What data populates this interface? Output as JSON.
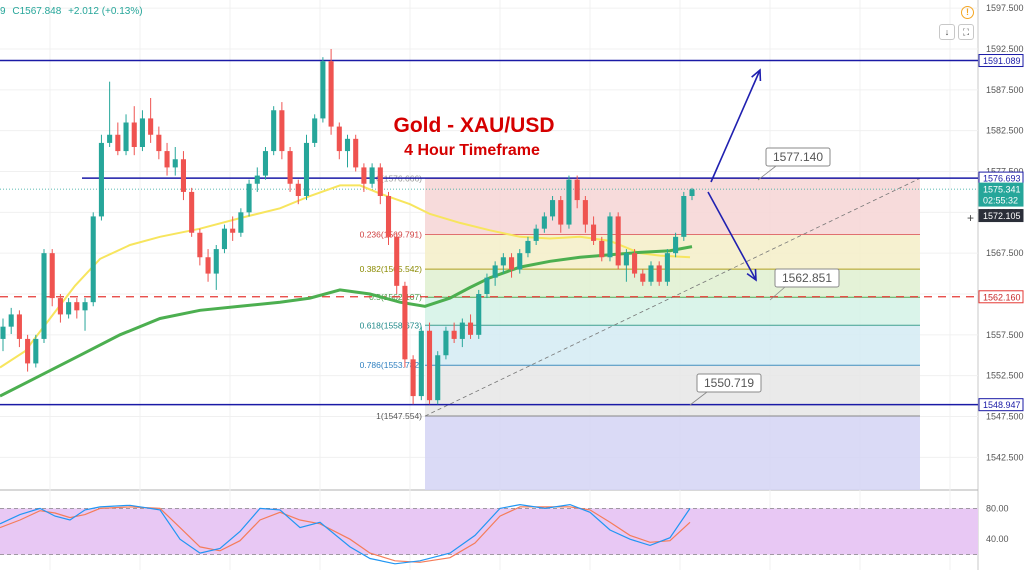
{
  "header": {
    "prefix": "9",
    "close": "C1567.848",
    "change": "+2.012 (+0.13%)"
  },
  "title": {
    "line1": "Gold - XAU/USD",
    "line2": "4 Hour Timeframe"
  },
  "colors": {
    "bull": "#26a69a",
    "bear": "#ef5350",
    "hline": "#1a1aa6",
    "redline": "#e53935",
    "ma_fast": "#f7e55e",
    "ma_slow": "#4caf50",
    "title": "#d50000",
    "stoch_bg": "#e8c8f4"
  },
  "toolbar": {
    "warn_icon": "!",
    "down_icon": "↓",
    "fullscreen_icon": "⛶"
  },
  "chart_data": {
    "type": "candlestick",
    "ylim": [
      1538.5,
      1598.5
    ],
    "y_ticks": [
      "1597.500",
      "1592.500",
      "1587.500",
      "1582.500",
      "1577.500",
      "1572.500",
      "1567.500",
      "1562.500",
      "1557.500",
      "1552.500",
      "1547.500",
      "1542.500"
    ],
    "price_labels": [
      {
        "value": 1591.089,
        "text": "1591.089",
        "style": "hline"
      },
      {
        "value": 1576.693,
        "text": "1576.693",
        "style": "hline"
      },
      {
        "value": 1575.341,
        "text": "1575.341",
        "style": "bull"
      },
      {
        "value": 1574.0,
        "text": "02:55:32",
        "style": "bull"
      },
      {
        "value": 1572.105,
        "text": "1572.105",
        "style": "dark"
      },
      {
        "value": 1562.16,
        "text": "1562.160",
        "style": "red"
      },
      {
        "value": 1548.947,
        "text": "1548.947",
        "style": "hline"
      }
    ],
    "horizontal_lines": [
      {
        "value": 1591.089,
        "style": "solid"
      },
      {
        "value": 1576.693,
        "style": "solid"
      },
      {
        "value": 1548.947,
        "style": "solid"
      },
      {
        "value": 1562.16,
        "style": "dashed"
      }
    ],
    "fibonacci": {
      "levels": [
        {
          "ratio": 0,
          "price": 1576.666,
          "label": "0(1576.666)"
        },
        {
          "ratio": 0.236,
          "price": 1569.791,
          "label": "0.236(1569.791)"
        },
        {
          "ratio": 0.382,
          "price": 1565.542,
          "label": "0.382(1565.542)"
        },
        {
          "ratio": 0.5,
          "price": 1562.107,
          "label": "0.5(1562.107)"
        },
        {
          "ratio": 0.618,
          "price": 1558.673,
          "label": "0.618(1558.673)"
        },
        {
          "ratio": 0.786,
          "price": 1553.782,
          "label": "0.786(1553.782)"
        },
        {
          "ratio": 1,
          "price": 1547.554,
          "label": "1(1547.554)"
        }
      ],
      "zone_colors": [
        "#f6d5d5",
        "#f5efc8",
        "#dff0d0",
        "#d3f2e6",
        "#d4ebf3",
        "#e6e6e6",
        "#d4d4f4"
      ]
    },
    "callouts": [
      {
        "text": "1577.140",
        "price": 1577.14
      },
      {
        "text": "1562.851",
        "price": 1562.851
      },
      {
        "text": "1550.719",
        "price": 1550.719
      }
    ],
    "candles": [
      [
        1557.0,
        1559.5,
        1555.5,
        1558.5
      ],
      [
        1558.5,
        1560.8,
        1557.6,
        1560.0
      ],
      [
        1560.0,
        1560.5,
        1556.0,
        1557.0
      ],
      [
        1557.0,
        1557.5,
        1553.0,
        1554.0
      ],
      [
        1554.0,
        1557.5,
        1553.5,
        1557.0
      ],
      [
        1557.0,
        1568.0,
        1556.5,
        1567.5
      ],
      [
        1567.5,
        1568.0,
        1561.0,
        1562.0
      ],
      [
        1562.0,
        1562.5,
        1559.0,
        1560.0
      ],
      [
        1560.0,
        1562.0,
        1559.5,
        1561.5
      ],
      [
        1561.5,
        1562.0,
        1559.5,
        1560.5
      ],
      [
        1560.5,
        1562.0,
        1558.0,
        1561.5
      ],
      [
        1561.5,
        1572.5,
        1561.0,
        1572.0
      ],
      [
        1572.0,
        1582.0,
        1571.5,
        1581.0
      ],
      [
        1581.0,
        1588.5,
        1580.5,
        1582.0
      ],
      [
        1582.0,
        1583.5,
        1579.5,
        1580.0
      ],
      [
        1580.0,
        1584.5,
        1579.5,
        1583.5
      ],
      [
        1583.5,
        1585.5,
        1579.5,
        1580.5
      ],
      [
        1580.5,
        1585.0,
        1580.0,
        1584.0
      ],
      [
        1584.0,
        1586.5,
        1581.0,
        1582.0
      ],
      [
        1582.0,
        1583.0,
        1579.0,
        1580.0
      ],
      [
        1580.0,
        1581.0,
        1577.0,
        1578.0
      ],
      [
        1578.0,
        1580.5,
        1577.0,
        1579.0
      ],
      [
        1579.0,
        1580.0,
        1574.0,
        1575.0
      ],
      [
        1575.0,
        1575.5,
        1569.5,
        1570.0
      ],
      [
        1570.0,
        1570.5,
        1566.0,
        1567.0
      ],
      [
        1567.0,
        1568.0,
        1564.0,
        1565.0
      ],
      [
        1565.0,
        1568.5,
        1563.0,
        1568.0
      ],
      [
        1568.0,
        1571.0,
        1567.5,
        1570.5
      ],
      [
        1570.5,
        1572.0,
        1569.0,
        1570.0
      ],
      [
        1570.0,
        1573.0,
        1569.5,
        1572.5
      ],
      [
        1572.5,
        1576.5,
        1572.0,
        1576.0
      ],
      [
        1576.0,
        1578.0,
        1575.0,
        1577.0
      ],
      [
        1577.0,
        1580.5,
        1576.5,
        1580.0
      ],
      [
        1580.0,
        1585.5,
        1579.5,
        1585.0
      ],
      [
        1585.0,
        1586.0,
        1579.0,
        1580.0
      ],
      [
        1580.0,
        1580.5,
        1575.0,
        1576.0
      ],
      [
        1576.0,
        1576.5,
        1573.5,
        1574.5
      ],
      [
        1574.5,
        1582.0,
        1574.0,
        1581.0
      ],
      [
        1581.0,
        1584.5,
        1580.5,
        1584.0
      ],
      [
        1584.0,
        1591.5,
        1583.5,
        1591.0
      ],
      [
        1591.0,
        1592.5,
        1582.0,
        1583.0
      ],
      [
        1583.0,
        1583.5,
        1579.0,
        1580.0
      ],
      [
        1580.0,
        1582.0,
        1578.0,
        1581.5
      ],
      [
        1581.5,
        1582.0,
        1577.5,
        1578.0
      ],
      [
        1578.0,
        1578.5,
        1575.0,
        1576.0
      ],
      [
        1576.0,
        1578.5,
        1575.5,
        1578.0
      ],
      [
        1578.0,
        1578.5,
        1573.5,
        1574.5
      ],
      [
        1574.5,
        1575.0,
        1568.5,
        1569.5
      ],
      [
        1569.5,
        1570.0,
        1562.5,
        1563.5
      ],
      [
        1563.5,
        1564.0,
        1553.5,
        1554.5
      ],
      [
        1554.5,
        1555.0,
        1549.0,
        1550.0
      ],
      [
        1550.0,
        1558.5,
        1549.5,
        1558.0
      ],
      [
        1558.0,
        1559.0,
        1549.0,
        1549.5
      ],
      [
        1549.5,
        1555.5,
        1549.0,
        1555.0
      ],
      [
        1555.0,
        1558.5,
        1554.5,
        1558.0
      ],
      [
        1558.0,
        1559.0,
        1556.5,
        1557.0
      ],
      [
        1557.0,
        1559.5,
        1556.0,
        1559.0
      ],
      [
        1559.0,
        1560.0,
        1557.0,
        1557.5
      ],
      [
        1557.5,
        1563.0,
        1557.0,
        1562.5
      ],
      [
        1562.5,
        1565.0,
        1562.0,
        1564.5
      ],
      [
        1564.5,
        1566.5,
        1563.5,
        1566.0
      ],
      [
        1566.0,
        1567.5,
        1565.0,
        1567.0
      ],
      [
        1567.0,
        1567.5,
        1564.5,
        1565.5
      ],
      [
        1565.5,
        1568.0,
        1565.0,
        1567.5
      ],
      [
        1567.5,
        1569.5,
        1567.0,
        1569.0
      ],
      [
        1569.0,
        1571.0,
        1568.5,
        1570.5
      ],
      [
        1570.5,
        1572.5,
        1570.0,
        1572.0
      ],
      [
        1572.0,
        1574.5,
        1571.5,
        1574.0
      ],
      [
        1574.0,
        1574.5,
        1570.0,
        1571.0
      ],
      [
        1571.0,
        1577.0,
        1570.5,
        1576.5
      ],
      [
        1576.5,
        1577.0,
        1573.0,
        1574.0
      ],
      [
        1574.0,
        1574.5,
        1570.0,
        1571.0
      ],
      [
        1571.0,
        1572.0,
        1568.5,
        1569.0
      ],
      [
        1569.0,
        1569.5,
        1566.5,
        1567.0
      ],
      [
        1567.0,
        1572.5,
        1566.5,
        1572.0
      ],
      [
        1572.0,
        1572.5,
        1565.5,
        1566.0
      ],
      [
        1566.0,
        1568.0,
        1564.0,
        1567.5
      ],
      [
        1567.5,
        1568.0,
        1564.5,
        1565.0
      ],
      [
        1565.0,
        1565.5,
        1563.5,
        1564.0
      ],
      [
        1564.0,
        1566.5,
        1563.5,
        1566.0
      ],
      [
        1566.0,
        1566.5,
        1563.5,
        1564.0
      ],
      [
        1564.0,
        1568.0,
        1563.5,
        1567.5
      ],
      [
        1567.5,
        1570.0,
        1567.0,
        1569.5
      ],
      [
        1569.5,
        1575.0,
        1569.0,
        1574.5
      ],
      [
        1574.5,
        1575.5,
        1574.0,
        1575.3
      ]
    ],
    "ma_fast": [
      [
        0,
        1553.5
      ],
      [
        25,
        1555.5
      ],
      [
        50,
        1559.5
      ],
      [
        75,
        1563.5
      ],
      [
        100,
        1566.8
      ],
      [
        130,
        1568.5
      ],
      [
        160,
        1569.5
      ],
      [
        200,
        1570.5
      ],
      [
        240,
        1571.8
      ],
      [
        280,
        1573.0
      ],
      [
        310,
        1574.5
      ],
      [
        340,
        1575.8
      ],
      [
        360,
        1575.8
      ],
      [
        380,
        1574.8
      ],
      [
        410,
        1573.5
      ],
      [
        430,
        1572.3
      ],
      [
        460,
        1571.2
      ],
      [
        490,
        1570.3
      ],
      [
        520,
        1569.5
      ],
      [
        550,
        1569.3
      ],
      [
        580,
        1569.5
      ],
      [
        610,
        1569.0
      ],
      [
        640,
        1567.5
      ],
      [
        660,
        1567.2
      ],
      [
        690,
        1567.0
      ]
    ],
    "ma_slow": [
      [
        0,
        1550.0
      ],
      [
        40,
        1552.5
      ],
      [
        80,
        1555.0
      ],
      [
        120,
        1557.5
      ],
      [
        160,
        1559.5
      ],
      [
        200,
        1560.5
      ],
      [
        240,
        1561.0
      ],
      [
        280,
        1561.5
      ],
      [
        310,
        1562.0
      ],
      [
        340,
        1563.0
      ],
      [
        370,
        1562.5
      ],
      [
        400,
        1561.5
      ],
      [
        425,
        1561.0
      ],
      [
        450,
        1562.0
      ],
      [
        470,
        1563.3
      ],
      [
        490,
        1564.5
      ],
      [
        520,
        1565.8
      ],
      [
        550,
        1566.5
      ],
      [
        580,
        1567.0
      ],
      [
        610,
        1567.3
      ],
      [
        640,
        1567.6
      ],
      [
        670,
        1567.8
      ],
      [
        692,
        1568.3
      ]
    ],
    "stochastic": {
      "ylim": [
        0,
        100
      ],
      "y_ticks": [
        "80.00",
        "40.00"
      ],
      "bands": [
        80,
        20
      ],
      "k": [
        [
          0,
          60
        ],
        [
          20,
          72
        ],
        [
          40,
          80
        ],
        [
          55,
          70
        ],
        [
          70,
          65
        ],
        [
          85,
          78
        ],
        [
          100,
          82
        ],
        [
          130,
          84
        ],
        [
          160,
          78
        ],
        [
          180,
          40
        ],
        [
          200,
          22
        ],
        [
          220,
          28
        ],
        [
          240,
          50
        ],
        [
          260,
          80
        ],
        [
          280,
          78
        ],
        [
          300,
          55
        ],
        [
          320,
          62
        ],
        [
          350,
          30
        ],
        [
          370,
          15
        ],
        [
          395,
          8
        ],
        [
          420,
          12
        ],
        [
          450,
          22
        ],
        [
          475,
          45
        ],
        [
          500,
          80
        ],
        [
          520,
          85
        ],
        [
          545,
          80
        ],
        [
          570,
          85
        ],
        [
          590,
          75
        ],
        [
          610,
          52
        ],
        [
          630,
          40
        ],
        [
          650,
          32
        ],
        [
          670,
          42
        ],
        [
          690,
          80
        ]
      ],
      "d": [
        [
          0,
          55
        ],
        [
          20,
          65
        ],
        [
          40,
          77
        ],
        [
          55,
          74
        ],
        [
          70,
          68
        ],
        [
          85,
          72
        ],
        [
          100,
          80
        ],
        [
          130,
          82
        ],
        [
          160,
          80
        ],
        [
          180,
          55
        ],
        [
          200,
          30
        ],
        [
          220,
          25
        ],
        [
          240,
          38
        ],
        [
          260,
          65
        ],
        [
          280,
          75
        ],
        [
          300,
          65
        ],
        [
          320,
          60
        ],
        [
          350,
          40
        ],
        [
          370,
          22
        ],
        [
          395,
          12
        ],
        [
          420,
          10
        ],
        [
          450,
          16
        ],
        [
          475,
          35
        ],
        [
          500,
          70
        ],
        [
          520,
          82
        ],
        [
          545,
          82
        ],
        [
          570,
          82
        ],
        [
          590,
          78
        ],
        [
          610,
          62
        ],
        [
          630,
          45
        ],
        [
          650,
          36
        ],
        [
          670,
          38
        ],
        [
          690,
          62
        ]
      ]
    }
  }
}
